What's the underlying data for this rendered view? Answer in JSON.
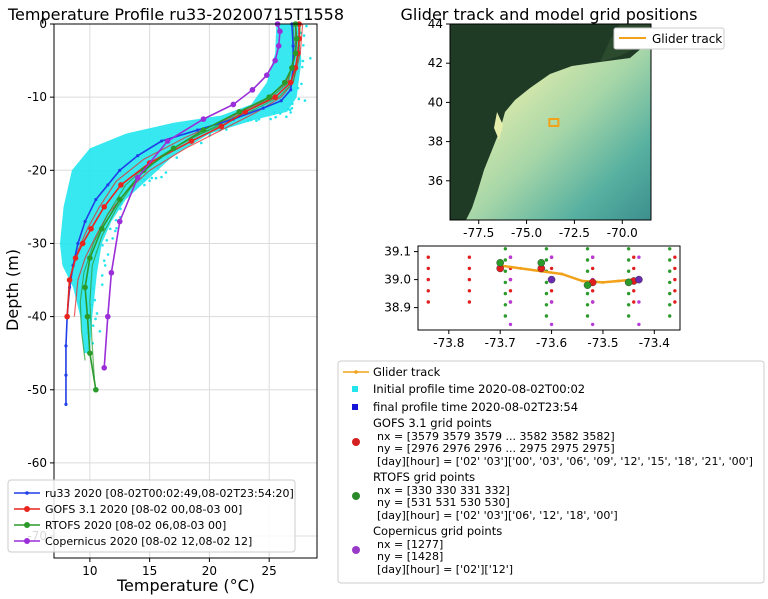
{
  "chart_data": [
    {
      "type": "line",
      "title": "Temperature Profile ru33-20200715T1558",
      "xlabel": "Temperature (°C)",
      "ylabel": "Depth (m)",
      "xlim": [
        7,
        29
      ],
      "ylim": [
        -73,
        0
      ],
      "xticks": [
        10,
        15,
        20,
        25
      ],
      "yticks": [
        0,
        -10,
        -20,
        -30,
        -40,
        -50,
        -60,
        -70
      ],
      "grid": true,
      "legend_position": "bottom-left",
      "glider_cloud": {
        "color": "#22e5ee",
        "upper": [
          [
            27.4,
            0
          ],
          [
            27.7,
            -5
          ],
          [
            27.3,
            -10
          ],
          [
            26.5,
            -12
          ],
          [
            24,
            -13
          ],
          [
            20,
            -15
          ],
          [
            17,
            -18
          ],
          [
            15,
            -21
          ],
          [
            13,
            -24
          ],
          [
            11.8,
            -27
          ],
          [
            11,
            -30
          ],
          [
            10.6,
            -34
          ],
          [
            10.2,
            -40
          ],
          [
            10,
            -45
          ]
        ],
        "lower": [
          [
            9.5,
            -45
          ],
          [
            9.2,
            -40
          ],
          [
            8.6,
            -36
          ],
          [
            7.7,
            -33
          ],
          [
            7.5,
            -30
          ],
          [
            7.8,
            -25
          ],
          [
            8.5,
            -20
          ],
          [
            10,
            -17
          ],
          [
            13,
            -15
          ],
          [
            17,
            -13.5
          ],
          [
            21,
            -12.5
          ],
          [
            23.5,
            -11
          ],
          [
            24.8,
            -8
          ],
          [
            25.5,
            -4
          ],
          [
            25.6,
            0
          ]
        ]
      },
      "series": [
        {
          "name": "ru33 2020 [08-02T00:02:49,08-02T23:54:20]",
          "color": "#1f3fe8",
          "marker": "dot",
          "points": [
            [
              26.9,
              0
            ],
            [
              27,
              -3
            ],
            [
              27,
              -6
            ],
            [
              26.8,
              -9
            ],
            [
              26,
              -10.5
            ],
            [
              24.5,
              -11.5
            ],
            [
              22,
              -13
            ],
            [
              19,
              -14.5
            ],
            [
              16,
              -16
            ],
            [
              14,
              -18
            ],
            [
              12.5,
              -20
            ],
            [
              11.5,
              -22
            ],
            [
              10.5,
              -24
            ],
            [
              9.6,
              -27
            ],
            [
              9,
              -30
            ],
            [
              8.6,
              -33
            ],
            [
              8.3,
              -36
            ],
            [
              8.1,
              -40
            ],
            [
              8,
              -44
            ],
            [
              8,
              -48
            ],
            [
              8,
              -52
            ]
          ]
        },
        {
          "name": "GOFS 3.1 2020 [08-02 00,08-03 00]",
          "color": "#e8241f",
          "marker": "circle",
          "points": [
            [
              27.5,
              0
            ],
            [
              27.5,
              -2
            ],
            [
              27.4,
              -4
            ],
            [
              27.2,
              -6
            ],
            [
              26.8,
              -8
            ],
            [
              25.5,
              -10
            ],
            [
              23,
              -12
            ],
            [
              21,
              -14
            ],
            [
              18.5,
              -16
            ],
            [
              15,
              -19
            ],
            [
              12.6,
              -22
            ],
            [
              11.2,
              -25
            ],
            [
              10.1,
              -28
            ],
            [
              9.4,
              -30
            ],
            [
              8.8,
              -32
            ],
            [
              8.3,
              -35
            ],
            [
              8.1,
              -40
            ]
          ]
        },
        {
          "name": "RTOFS 2020 [08-02 06,08-03 00]",
          "color": "#2b9a2b",
          "marker": "circle",
          "points": [
            [
              27.2,
              0
            ],
            [
              27.3,
              -2
            ],
            [
              27.2,
              -4
            ],
            [
              26.9,
              -6
            ],
            [
              26.3,
              -8
            ],
            [
              25,
              -10
            ],
            [
              22.5,
              -12
            ],
            [
              19.5,
              -14.5
            ],
            [
              17,
              -17
            ],
            [
              14.5,
              -20
            ],
            [
              12.5,
              -24
            ],
            [
              11,
              -28
            ],
            [
              10,
              -32
            ],
            [
              9.6,
              -36
            ],
            [
              9.8,
              -40
            ],
            [
              10,
              -45
            ],
            [
              10.5,
              -50
            ]
          ]
        },
        {
          "name": "Copernicus 2020 [08-02 12,08-02 12]",
          "color": "#9a2ed8",
          "marker": "circle",
          "points": [
            [
              25.7,
              0
            ],
            [
              25.9,
              -1
            ],
            [
              25.8,
              -3
            ],
            [
              25.5,
              -5
            ],
            [
              24.8,
              -7
            ],
            [
              23.6,
              -9
            ],
            [
              22,
              -11
            ],
            [
              19.5,
              -13
            ],
            [
              16.5,
              -16
            ],
            [
              14,
              -21
            ],
            [
              12.5,
              -27
            ],
            [
              11.8,
              -34
            ],
            [
              11.5,
              -40
            ],
            [
              11.2,
              -47
            ]
          ]
        }
      ],
      "extra_lines": [
        {
          "color": "#e8241f",
          "points": [
            [
              27.8,
              0
            ],
            [
              27.6,
              -4
            ],
            [
              27,
              -8
            ],
            [
              26,
              -10
            ],
            [
              24,
              -12
            ],
            [
              21,
              -14.5
            ],
            [
              18,
              -17
            ],
            [
              15,
              -20
            ],
            [
              13,
              -23
            ],
            [
              11.5,
              -26
            ],
            [
              10.5,
              -29
            ],
            [
              9.6,
              -32
            ],
            [
              9,
              -35
            ],
            [
              8.7,
              -40
            ]
          ]
        },
        {
          "color": "#e8241f",
          "points": [
            [
              27.2,
              0
            ],
            [
              27.2,
              -4
            ],
            [
              26.5,
              -8
            ],
            [
              24.5,
              -10.5
            ],
            [
              21.5,
              -13
            ],
            [
              18,
              -15.5
            ],
            [
              14.5,
              -18.5
            ],
            [
              12.2,
              -21.5
            ],
            [
              10.8,
              -25
            ],
            [
              9.8,
              -28
            ],
            [
              9,
              -31
            ],
            [
              8.5,
              -34
            ],
            [
              8.2,
              -38
            ]
          ]
        },
        {
          "color": "#2b9a2b",
          "points": [
            [
              27,
              0
            ],
            [
              27.1,
              -4
            ],
            [
              26.6,
              -8
            ],
            [
              25.2,
              -10
            ],
            [
              23,
              -12
            ],
            [
              20.5,
              -14
            ],
            [
              17.5,
              -16.5
            ],
            [
              15,
              -19
            ],
            [
              13,
              -22
            ],
            [
              11.5,
              -26
            ],
            [
              10.3,
              -30
            ],
            [
              9.5,
              -34
            ],
            [
              9.2,
              -38
            ],
            [
              9.3,
              -42
            ],
            [
              9.6,
              -46
            ]
          ]
        },
        {
          "color": "#2b9a2b",
          "points": [
            [
              27.6,
              0
            ],
            [
              27.5,
              -4
            ],
            [
              27,
              -8
            ],
            [
              25.8,
              -10
            ],
            [
              24,
              -11.5
            ],
            [
              21.5,
              -13.5
            ],
            [
              18.5,
              -15.5
            ],
            [
              16,
              -18
            ],
            [
              14,
              -21
            ],
            [
              12.3,
              -25
            ],
            [
              11,
              -29
            ],
            [
              10.2,
              -33
            ],
            [
              10,
              -38
            ],
            [
              10.2,
              -44
            ],
            [
              10.4,
              -49
            ]
          ]
        }
      ]
    },
    {
      "type": "map",
      "title": "Glider track and model grid positions",
      "xlim": [
        -79,
        -68.5
      ],
      "ylim": [
        34,
        44
      ],
      "xticks": [
        "-77.5",
        "-75.0",
        "-72.5",
        "-70.0"
      ],
      "yticks": [
        "44",
        "42",
        "40",
        "38",
        "36"
      ],
      "legend": "Glider track",
      "glider_box": {
        "lon": -73.6,
        "lat": 39.0,
        "color": "#f2a21a"
      }
    },
    {
      "type": "scatter",
      "xlim": [
        -73.86,
        -73.35
      ],
      "ylim": [
        38.82,
        39.12
      ],
      "xticks": [
        "-73.8",
        "-73.7",
        "-73.6",
        "-73.5",
        "-73.4"
      ],
      "yticks": [
        "39.1",
        "39.0",
        "38.9"
      ],
      "grid_columns": {
        "gofs": {
          "color": "#e21d1d",
          "lons": [
            -73.84,
            -73.76,
            -73.68,
            -73.6,
            -73.52,
            -73.44,
            -73.36
          ],
          "lats": [
            39.08,
            39.04,
            39.0,
            38.96,
            38.92
          ]
        },
        "rtofs": {
          "color": "#2a9a2a",
          "lons": [
            -73.69,
            -73.61,
            -73.53,
            -73.45,
            -73.37
          ],
          "lats": [
            39.11,
            39.07,
            39.03,
            38.99,
            38.95,
            38.91,
            38.87
          ]
        },
        "copernicus": {
          "color": "#b53ad9",
          "lons": [
            -73.68,
            -73.6,
            -73.52,
            -73.43
          ],
          "lats": [
            39.08,
            39.0,
            38.92,
            38.84
          ]
        }
      },
      "glider_track": [
        [
          -73.7,
          39.05
        ],
        [
          -73.66,
          39.04
        ],
        [
          -73.62,
          39.03
        ],
        [
          -73.58,
          39.02
        ],
        [
          -73.54,
          38.995
        ],
        [
          -73.5,
          38.99
        ],
        [
          -73.47,
          38.995
        ],
        [
          -73.44,
          39.0
        ]
      ],
      "highlight_points": [
        {
          "lon": -73.7,
          "lat": 39.04,
          "color": "#e21d1d"
        },
        {
          "lon": -73.62,
          "lat": 39.04,
          "color": "#e21d1d"
        },
        {
          "lon": -73.52,
          "lat": 38.99,
          "color": "#e21d1d"
        },
        {
          "lon": -73.44,
          "lat": 38.995,
          "color": "#e21d1d"
        },
        {
          "lon": -73.7,
          "lat": 39.06,
          "color": "#2a9a2a"
        },
        {
          "lon": -73.62,
          "lat": 39.06,
          "color": "#2a9a2a"
        },
        {
          "lon": -73.53,
          "lat": 38.98,
          "color": "#2a9a2a"
        },
        {
          "lon": -73.45,
          "lat": 38.99,
          "color": "#2a9a2a"
        },
        {
          "lon": -73.6,
          "lat": 39.0,
          "color": "#6a2bb0"
        },
        {
          "lon": -73.43,
          "lat": 39.0,
          "color": "#6a2bb0"
        }
      ]
    }
  ],
  "legend_right": {
    "glider_track": "Glider track",
    "initial_profile": "Initial profile time 2020-08-02T00:02",
    "final_profile": "final profile time 2020-08-02T23:54",
    "gofs_title": "GOFS 3.1 grid points",
    "gofs_nx": "nx = [3579 3579 3579 ... 3582 3582 3582]",
    "gofs_ny": "ny = [2976 2976 2976 ... 2975 2975 2975]",
    "gofs_day_hour": "[day][hour] = ['02' '03']['00', '03', '06', '09', '12', '15', '18', '21', '00']",
    "rtofs_title": "RTOFS grid points",
    "rtofs_nx": "nx = [330 330 331 332]",
    "rtofs_ny": "ny = [531 531 530 530]",
    "rtofs_day_hour": "[day][hour] = ['02' '03']['06', '12', '18', '00']",
    "cop_title": "Copernicus grid points",
    "cop_nx": "nx = [1277]",
    "cop_ny": "ny = [1428]",
    "cop_day_hour": "[day][hour] = ['02']['12']",
    "colors": {
      "track": "#f2a21a",
      "initial": "#22e5ee",
      "final": "#1515d8",
      "gofs": "#d42020",
      "rtofs": "#2a8a2a",
      "cop": "#9a3ac8"
    }
  }
}
